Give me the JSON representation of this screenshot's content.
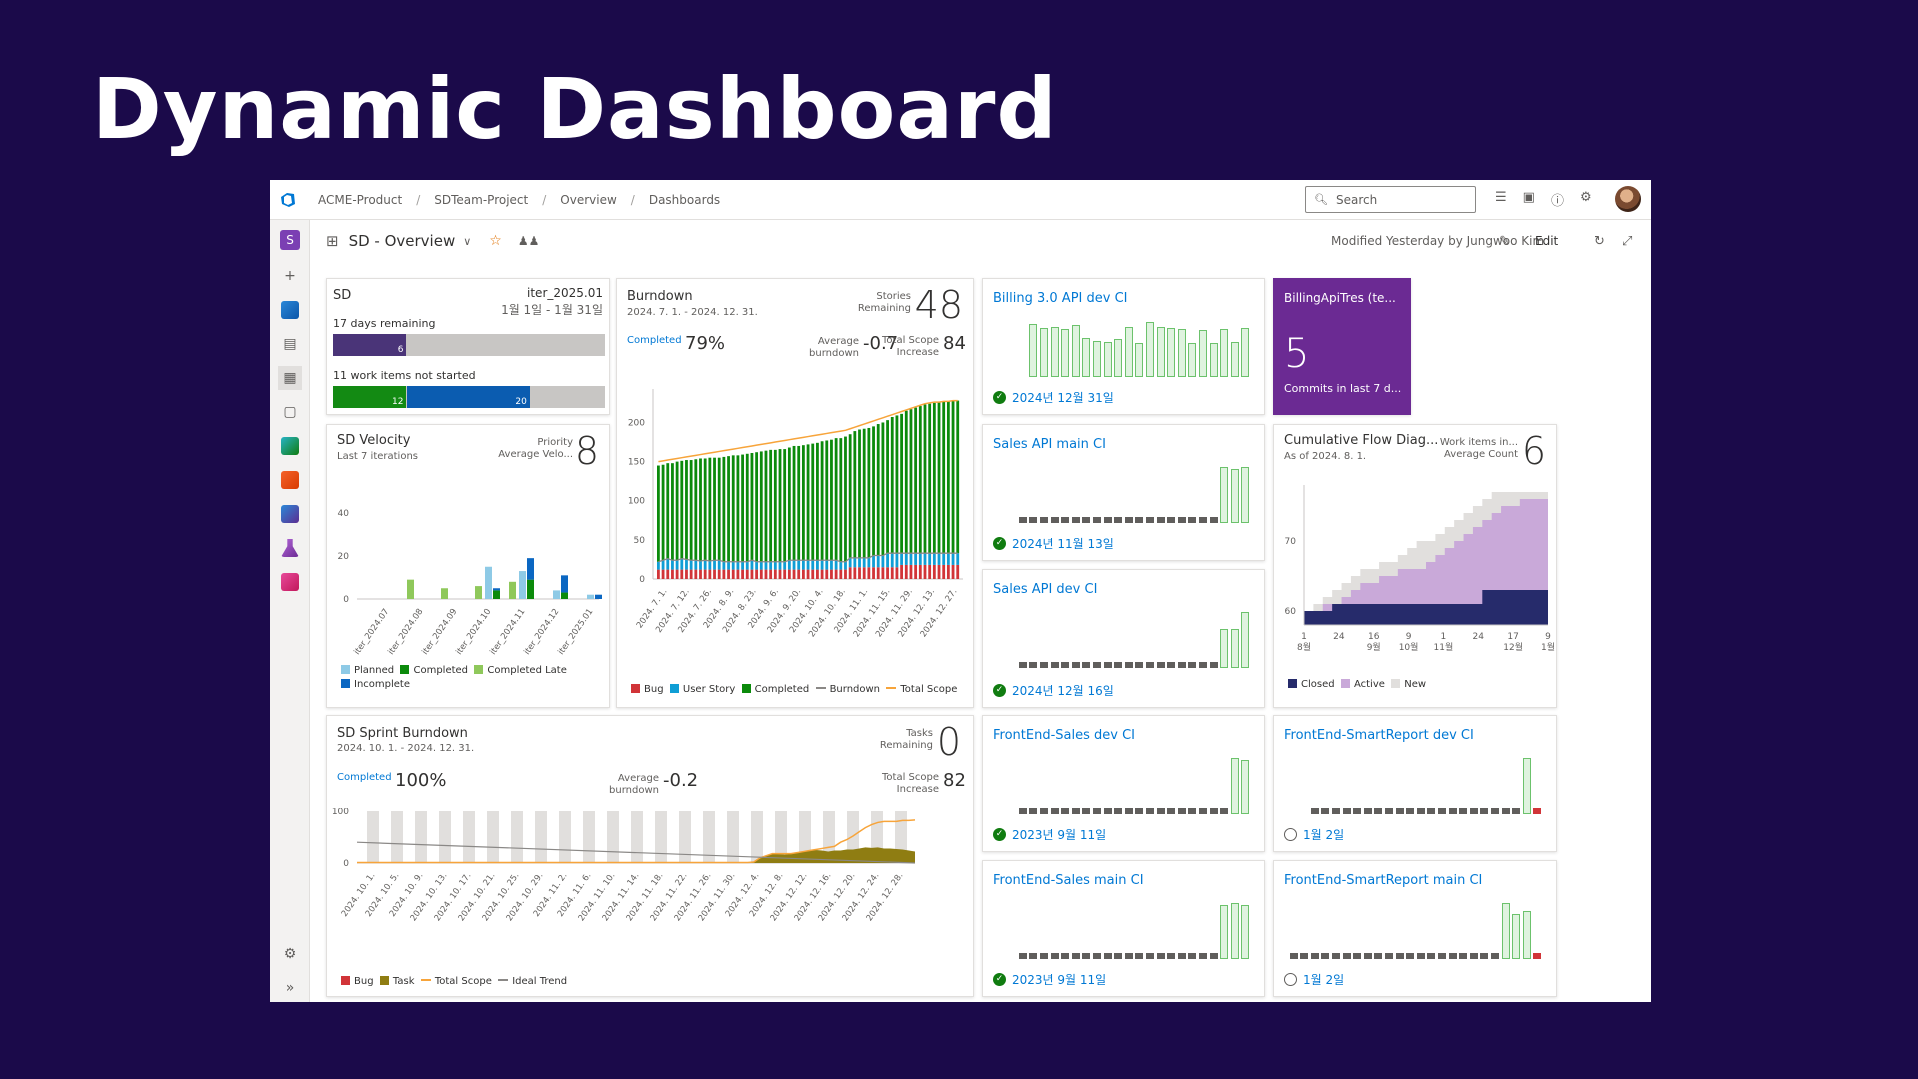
{
  "slide_title": "Dynamic Dashboard",
  "breadcrumb": [
    "ACME-Product",
    "SDTeam-Project",
    "Overview",
    "Dashboards"
  ],
  "search": {
    "placeholder": "Search"
  },
  "project_initial": "S",
  "dashboard": {
    "name": "SD - Overview",
    "modified": "Modified Yesterday by Jungwoo Kim",
    "edit_label": "Edit"
  },
  "colors": {
    "accent": "#0078d4",
    "success": "#107c10",
    "bug": "#d13438",
    "story": "#0f9ed5",
    "completed": "#0b8a0b",
    "late": "#8fc85b",
    "planned": "#8ecae6",
    "incomplete": "#0b67c2",
    "purple": "#6b2a93"
  },
  "sprint": {
    "team": "SD",
    "iteration": "iter_2025.01",
    "dates": "1월 1일 - 1월 31일",
    "days_remaining": "17 days remaining",
    "bar1_done": 6,
    "bar1_done_fraction": 0.27,
    "not_started": "11 work items not started",
    "bar2_completed": 12,
    "bar2_inprogress": 20,
    "bar2_completed_fraction": 0.27,
    "bar2_inprogress_fraction": 0.45
  },
  "velocity": {
    "title": "SD Velocity",
    "subtitle": "Last 7 iterations",
    "metric_label": "Priority",
    "metric_sub": "Average Velo...",
    "value": "8",
    "chart_data": {
      "type": "bar",
      "categories": [
        "iter_2024.07",
        "iter_2024.08",
        "iter_2024.09",
        "iter_2024.10",
        "iter_2024.11",
        "iter_2024.12",
        "iter_2025.01"
      ],
      "series": [
        {
          "name": "Planned",
          "values": [
            0,
            0,
            0,
            15,
            13,
            4,
            2
          ]
        },
        {
          "name": "Completed",
          "values": [
            0,
            0,
            0,
            4,
            9,
            3,
            0
          ]
        },
        {
          "name": "Completed Late",
          "values": [
            0,
            9,
            5,
            6,
            8,
            0,
            0
          ]
        },
        {
          "name": "Incomplete",
          "values": [
            0,
            0,
            0,
            1,
            10,
            8,
            2
          ]
        }
      ],
      "yticks": [
        "0",
        "20",
        "40"
      ],
      "ylim": [
        0,
        40
      ]
    },
    "legend": [
      "Planned",
      "Completed",
      "Completed Late",
      "Incomplete"
    ]
  },
  "burndown": {
    "title": "Burndown",
    "dates": "2024. 7. 1. - 2024. 12. 31.",
    "metric_label": "Stories",
    "metric_sub": "Remaining",
    "value": "48",
    "completed_label": "Completed",
    "completed_pct": "79%",
    "avg_label": "Average",
    "avg_label2": "burndown",
    "avg_value": "-0.7",
    "scope_label": "Total Scope",
    "scope_label2": "Increase",
    "scope_value": "84",
    "chart_data": {
      "type": "bar",
      "ylim": [
        0,
        230
      ],
      "yticks": [
        "0",
        "50",
        "100",
        "150",
        "200"
      ],
      "xticks": [
        "2024. 7. 1.",
        "2024. 7. 12.",
        "2024. 7. 26.",
        "2024. 8. 9.",
        "2024. 8. 23.",
        "2024. 9. 6.",
        "2024. 9. 20.",
        "2024. 10. 4.",
        "2024. 10. 18.",
        "2024. 11. 1.",
        "2024. 11. 15.",
        "2024. 11. 29.",
        "2024. 12. 13.",
        "2024. 12. 27."
      ],
      "bug": [
        12,
        12,
        12,
        12,
        12,
        12,
        12,
        12,
        12,
        12,
        12,
        12,
        12,
        12,
        12,
        12,
        12,
        12,
        12,
        12,
        12,
        12,
        12,
        12,
        12,
        12,
        12,
        12,
        12,
        12,
        12,
        12,
        12,
        12,
        12,
        12,
        12,
        12,
        12,
        12,
        12,
        15,
        15,
        15,
        15,
        15,
        15,
        15,
        15,
        15,
        15,
        15,
        18,
        18,
        18,
        18,
        18,
        18,
        18,
        18,
        18,
        18,
        18,
        18,
        18
      ],
      "story": [
        10,
        12,
        14,
        12,
        12,
        14,
        13,
        12,
        12,
        11,
        12,
        11,
        12,
        12,
        10,
        10,
        10,
        10,
        10,
        10,
        12,
        10,
        10,
        10,
        10,
        10,
        10,
        10,
        12,
        12,
        12,
        12,
        12,
        12,
        12,
        12,
        12,
        12,
        12,
        10,
        10,
        12,
        12,
        12,
        12,
        12,
        15,
        15,
        15,
        18,
        18,
        18,
        15,
        15,
        15,
        15,
        15,
        15,
        15,
        15,
        15,
        15,
        15,
        15,
        15
      ],
      "completed": [
        123,
        122,
        122,
        124,
        126,
        125,
        127,
        128,
        129,
        131,
        130,
        132,
        131,
        131,
        134,
        135,
        136,
        136,
        137,
        138,
        137,
        140,
        141,
        142,
        143,
        143,
        144,
        144,
        144,
        146,
        146,
        147,
        148,
        149,
        150,
        152,
        153,
        154,
        156,
        158,
        160,
        158,
        162,
        164,
        165,
        166,
        165,
        168,
        170,
        170,
        174,
        176,
        178,
        182,
        184,
        186,
        188,
        190,
        191,
        192,
        193,
        194,
        194,
        195,
        195
      ],
      "total_scope": [
        150,
        151,
        152,
        153,
        154,
        155,
        156,
        157,
        158,
        159,
        160,
        161,
        162,
        163,
        164,
        165,
        166,
        167,
        168,
        169,
        170,
        171,
        172,
        173,
        174,
        175,
        176,
        177,
        178,
        179,
        180,
        181,
        182,
        183,
        184,
        185,
        186,
        187,
        188,
        189,
        190,
        192,
        194,
        196,
        198,
        200,
        202,
        204,
        206,
        208,
        210,
        212,
        214,
        216,
        218,
        220,
        222,
        224,
        225,
        226,
        226,
        227,
        227,
        228,
        228
      ],
      "burndown": [
        22,
        24,
        26,
        24,
        24,
        26,
        25,
        24,
        24,
        23,
        24,
        23,
        24,
        24,
        22,
        22,
        22,
        22,
        22,
        22,
        24,
        22,
        22,
        22,
        22,
        22,
        22,
        22,
        24,
        24,
        24,
        24,
        24,
        24,
        24,
        24,
        24,
        24,
        24,
        22,
        22,
        27,
        27,
        27,
        27,
        27,
        30,
        30,
        30,
        33,
        33,
        33,
        33,
        33,
        33,
        33,
        33,
        33,
        33,
        33,
        33,
        33,
        33,
        33,
        33
      ]
    },
    "legend": [
      "Bug",
      "User Story",
      "Completed",
      "Burndown",
      "Total Scope"
    ]
  },
  "ci": [
    {
      "name": "Billing 3.0 API dev CI",
      "date": "2024년 12월 31일",
      "status": "success",
      "bars": [
        0.95,
        0.88,
        0.9,
        0.86,
        0.92,
        0.7,
        0.64,
        0.62,
        0.68,
        0.9,
        0.6,
        0.98,
        0.9,
        0.88,
        0.86,
        0.6,
        0.84,
        0.6,
        0.86,
        0.62,
        0.88
      ]
    },
    {
      "name": "Sales API main CI",
      "date": "2024년 11월 13일",
      "status": "success",
      "bars": [
        0.1,
        0.1,
        0.1,
        0.1,
        0.1,
        0.1,
        0.1,
        0.1,
        0.1,
        0.1,
        0.1,
        0.1,
        0.1,
        0.1,
        0.1,
        0.1,
        0.1,
        0.1,
        0.1,
        1,
        0.96,
        1
      ]
    },
    {
      "name": "Sales API dev CI",
      "date": "2024년 12월 16일",
      "status": "success",
      "bars": [
        0.1,
        0.1,
        0.1,
        0.1,
        0.1,
        0.1,
        0.1,
        0.1,
        0.1,
        0.1,
        0.1,
        0.1,
        0.1,
        0.1,
        0.1,
        0.1,
        0.1,
        0.1,
        0.1,
        0.7,
        0.7,
        1
      ]
    },
    {
      "name": "FrontEnd-Sales dev CI",
      "date": "2023년 9월 11일",
      "status": "success",
      "bars": [
        0.1,
        0.1,
        0.1,
        0.1,
        0.1,
        0.1,
        0.1,
        0.1,
        0.1,
        0.1,
        0.1,
        0.1,
        0.1,
        0.1,
        0.1,
        0.1,
        0.1,
        0.1,
        0.1,
        0.1,
        1,
        0.96
      ]
    },
    {
      "name": "FrontEnd-SmartReport dev CI",
      "date": "1월 2일",
      "status": "pending",
      "bars": [
        0.1,
        0.1,
        0.1,
        0.1,
        0.1,
        0.1,
        0.1,
        0.1,
        0.1,
        0.1,
        0.1,
        0.1,
        0.1,
        0.1,
        0.1,
        0.1,
        0.1,
        0.1,
        0.1,
        0.1,
        1,
        0.1
      ]
    },
    {
      "name": "FrontEnd-Sales main CI",
      "date": "2023년 9월 11일",
      "status": "success",
      "bars": [
        0.1,
        0.1,
        0.1,
        0.1,
        0.1,
        0.1,
        0.1,
        0.1,
        0.1,
        0.1,
        0.1,
        0.1,
        0.1,
        0.1,
        0.1,
        0.1,
        0.1,
        0.1,
        0.1,
        0.96,
        1,
        0.96
      ]
    },
    {
      "name": "FrontEnd-SmartReport main CI",
      "date": "1월 2일",
      "status": "pending",
      "bars": [
        0.1,
        0.1,
        0.1,
        0.1,
        0.1,
        0.1,
        0.1,
        0.1,
        0.1,
        0.1,
        0.1,
        0.1,
        0.1,
        0.1,
        0.1,
        0.1,
        0.1,
        0.1,
        0.1,
        0.1,
        1,
        0.8,
        0.86,
        0.1
      ]
    }
  ],
  "commits": {
    "title": "BillingApiTres (te...",
    "value": "5",
    "label": "Commits in last 7 d..."
  },
  "cfd": {
    "title": "Cumulative Flow Diag...",
    "subtitle": "As of 2024. 8. 1.",
    "metric_label": "Work items in...",
    "metric_sub": "Average Count",
    "value": "6",
    "chart_data": {
      "type": "area",
      "ylim": [
        58,
        78
      ],
      "yticks": [
        "60",
        "70"
      ],
      "xticks": [
        "1\n8월",
        "24",
        "16\n9월",
        "9\n10월",
        "1\n11월",
        "24",
        "17\n12월",
        "9\n1월"
      ],
      "closed": [
        60,
        60,
        60,
        61,
        61,
        61,
        61,
        61,
        61,
        61,
        61,
        61,
        61,
        61,
        61,
        61,
        61,
        61,
        61,
        63,
        63,
        63,
        63,
        63,
        63,
        63
      ],
      "active": [
        60,
        60,
        61,
        61,
        62,
        63,
        64,
        64,
        65,
        65,
        66,
        66,
        66,
        67,
        68,
        69,
        70,
        71,
        72,
        73,
        74,
        75,
        75,
        76,
        76,
        76
      ],
      "new": [
        60,
        61,
        62,
        63,
        64,
        65,
        66,
        66,
        67,
        67,
        68,
        69,
        70,
        70,
        71,
        72,
        73,
        74,
        75,
        76,
        77,
        77,
        77,
        77,
        77,
        77
      ]
    },
    "legend": [
      "Closed",
      "Active",
      "New"
    ]
  },
  "sprint_burndown": {
    "title": "SD Sprint Burndown",
    "dates": "2024. 10. 1. - 2024. 12. 31.",
    "metric_label": "Tasks",
    "metric_sub": "Remaining",
    "value": "0",
    "completed_label": "Completed",
    "completed_pct": "100%",
    "avg_label": "Average",
    "avg_label2": "burndown",
    "avg_value": "-0.2",
    "scope_label": "Total Scope",
    "scope_label2": "Increase",
    "scope_value": "82",
    "chart_data": {
      "type": "area",
      "ylim": [
        0,
        100
      ],
      "yticks": [
        "0",
        "100"
      ],
      "xticks": [
        "2024. 10. 1.",
        "2024. 10. 5.",
        "2024. 10. 9.",
        "2024. 10. 13.",
        "2024. 10. 17.",
        "2024. 10. 21.",
        "2024. 10. 25.",
        "2024. 10. 29.",
        "2024. 11. 2.",
        "2024. 11. 6.",
        "2024. 11. 10.",
        "2024. 11. 14.",
        "2024. 11. 18.",
        "2024. 11. 22.",
        "2024. 11. 26.",
        "2024. 11. 30.",
        "2024. 12. 4.",
        "2024. 12. 8.",
        "2024. 12. 12.",
        "2024. 12. 16.",
        "2024. 12. 20.",
        "2024. 12. 24.",
        "2024. 12. 28."
      ],
      "task": [
        0,
        0,
        0,
        0,
        0,
        0,
        0,
        0,
        0,
        0,
        0,
        0,
        0,
        0,
        0,
        0,
        0,
        0,
        0,
        0,
        0,
        0,
        0,
        0,
        0,
        0,
        0,
        0,
        0,
        0,
        0,
        0,
        0,
        0,
        0,
        0,
        0,
        0,
        0,
        0,
        0,
        0,
        0,
        0,
        0,
        0,
        0,
        0,
        0,
        0,
        0,
        0,
        0,
        0,
        0,
        0,
        0,
        0,
        0,
        0,
        0,
        0,
        0,
        0,
        2,
        10,
        14,
        18,
        17,
        16,
        18,
        20,
        22,
        24,
        25,
        24,
        22,
        24,
        24,
        26,
        26,
        28,
        30,
        29,
        30,
        28,
        28,
        27,
        26,
        24,
        22
      ],
      "total_scope": [
        1,
        1,
        1,
        1,
        1,
        1,
        1,
        1,
        1,
        1,
        1,
        1,
        1,
        1,
        1,
        1,
        1,
        1,
        1,
        1,
        1,
        1,
        1,
        1,
        1,
        1,
        1,
        1,
        1,
        1,
        1,
        1,
        1,
        1,
        1,
        1,
        1,
        1,
        1,
        1,
        1,
        1,
        1,
        1,
        1,
        1,
        1,
        1,
        1,
        1,
        1,
        1,
        1,
        1,
        1,
        1,
        1,
        1,
        1,
        1,
        1,
        1,
        1,
        1,
        2,
        10,
        14,
        18,
        18,
        18,
        18,
        20,
        22,
        24,
        26,
        28,
        30,
        32,
        40,
        45,
        52,
        60,
        68,
        74,
        78,
        80,
        80,
        80,
        82,
        82,
        83
      ],
      "ideal": [
        40,
        0
      ]
    },
    "legend": [
      "Bug",
      "Task",
      "Total Scope",
      "Ideal Trend"
    ]
  }
}
